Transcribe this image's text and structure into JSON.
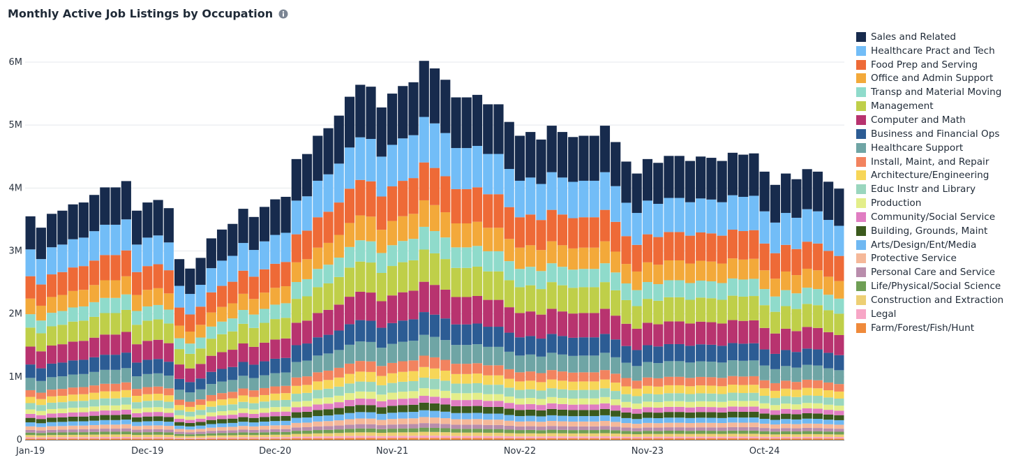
{
  "title": "Monthly Active Job Listings by Occupation",
  "icons": {
    "info": "info-icon"
  },
  "chart_data": {
    "type": "bar",
    "stacked": true,
    "title": "Monthly Active Job Listings by Occupation",
    "xlabel": "",
    "ylabel": "",
    "ylim": [
      0,
      6300000
    ],
    "yticks": [
      0,
      1000000,
      2000000,
      3000000,
      4000000,
      5000000,
      6000000
    ],
    "ytick_labels": [
      "0",
      "1M",
      "2M",
      "3M",
      "4M",
      "5M",
      "6M"
    ],
    "x_tick_labels": [
      "Jan-19",
      "Dec-19",
      "Dec-20",
      "Nov-21",
      "Nov-22",
      "Nov-23",
      "Oct-24"
    ],
    "x_tick_indices": [
      0,
      11,
      23,
      34,
      46,
      58,
      69
    ],
    "legend_position": "right",
    "grid": "horizontal",
    "categories": [
      "Jan-19",
      "Feb-19",
      "Mar-19",
      "Apr-19",
      "May-19",
      "Jun-19",
      "Jul-19",
      "Aug-19",
      "Sep-19",
      "Oct-19",
      "Nov-19",
      "Dec-19",
      "Jan-20",
      "Feb-20",
      "Mar-20",
      "Apr-20",
      "May-20",
      "Jun-20",
      "Jul-20",
      "Aug-20",
      "Sep-20",
      "Oct-20",
      "Nov-20",
      "Dec-20",
      "Jan-21",
      "Feb-21",
      "Mar-21",
      "Apr-21",
      "May-21",
      "Jun-21",
      "Jul-21",
      "Aug-21",
      "Sep-21",
      "Oct-21",
      "Nov-21",
      "Dec-21",
      "Jan-22",
      "Feb-22",
      "Mar-22",
      "Apr-22",
      "May-22",
      "Jun-22",
      "Jul-22",
      "Aug-22",
      "Sep-22",
      "Oct-22",
      "Nov-22",
      "Dec-22",
      "Jan-23",
      "Feb-23",
      "Mar-23",
      "Apr-23",
      "May-23",
      "Jun-23",
      "Jul-23",
      "Aug-23",
      "Sep-23",
      "Oct-23",
      "Nov-23",
      "Dec-23",
      "Jan-24",
      "Feb-24",
      "Mar-24",
      "Apr-24",
      "May-24",
      "Jun-24",
      "Jul-24",
      "Aug-24",
      "Sep-24",
      "Oct-24",
      "Nov-24",
      "Dec-24",
      "Jan-25",
      "Feb-25",
      "Mar-25",
      "Apr-25",
      "May-25"
    ],
    "totals": [
      3550000,
      3370000,
      3590000,
      3640000,
      3740000,
      3770000,
      3890000,
      4010000,
      4010000,
      4110000,
      3640000,
      3770000,
      3810000,
      3680000,
      2870000,
      2720000,
      2890000,
      3200000,
      3340000,
      3430000,
      3670000,
      3540000,
      3700000,
      3820000,
      3860000,
      4460000,
      4540000,
      4830000,
      4950000,
      5150000,
      5450000,
      5640000,
      5610000,
      5280000,
      5500000,
      5620000,
      5680000,
      6020000,
      5900000,
      5720000,
      5440000,
      5440000,
      5480000,
      5330000,
      5330000,
      5050000,
      4830000,
      4890000,
      4770000,
      4990000,
      4890000,
      4810000,
      4830000,
      4830000,
      4990000,
      4730000,
      4420000,
      4230000,
      4460000,
      4400000,
      4510000,
      4510000,
      4430000,
      4500000,
      4480000,
      4430000,
      4560000,
      4530000,
      4550000,
      4260000,
      4050000,
      4230000,
      4140000,
      4300000,
      4260000,
      4100000,
      3990000
    ],
    "series": [
      {
        "name": "Farm/Forest/Fish/Hunt",
        "color": "#ef8a3b",
        "share": 0.005
      },
      {
        "name": "Legal",
        "color": "#f7a6c6",
        "share": 0.006
      },
      {
        "name": "Construction and Extraction",
        "color": "#edcf74",
        "share": 0.01
      },
      {
        "name": "Life/Physical/Social Science",
        "color": "#6f9f55",
        "share": 0.011
      },
      {
        "name": "Personal Care and Service",
        "color": "#b98dac",
        "share": 0.012
      },
      {
        "name": "Protective Service",
        "color": "#f5b899",
        "share": 0.016
      },
      {
        "name": "Arts/Design/Ent/Media",
        "color": "#6fb8f2",
        "share": 0.018
      },
      {
        "name": "Building, Grounds, Maint",
        "color": "#3b5a1d",
        "share": 0.02
      },
      {
        "name": "Community/Social Service",
        "color": "#e07dc2",
        "share": 0.018
      },
      {
        "name": "Production",
        "color": "#e3ee8a",
        "share": 0.02
      },
      {
        "name": "Educ Instr and Library",
        "color": "#9ad6be",
        "share": 0.028
      },
      {
        "name": "Architecture/Engineering",
        "color": "#f7d658",
        "share": 0.028
      },
      {
        "name": "Install, Maint, and Repair",
        "color": "#f2835f",
        "share": 0.03
      },
      {
        "name": "Healthcare Support",
        "color": "#6fa5a5",
        "share": 0.055
      },
      {
        "name": "Business and Financial Ops",
        "color": "#2c5c94",
        "share": 0.06
      },
      {
        "name": "Computer and Math",
        "color": "#b8336f",
        "share": 0.08
      },
      {
        "name": "Management",
        "color": "#bfcf49",
        "share": 0.085
      },
      {
        "name": "Transp and Material Moving",
        "color": "#8fdbcb",
        "share": 0.06
      },
      {
        "name": "Office and Admin Support",
        "color": "#f3a93a",
        "share": 0.07
      },
      {
        "name": "Food Prep and Serving",
        "color": "#ee6a37",
        "share": 0.1
      },
      {
        "name": "Healthcare Pract and Tech",
        "color": "#72bdf7",
        "share": 0.12
      },
      {
        "name": "Sales and Related",
        "color": "#172b4d",
        "share": 0.148
      }
    ]
  },
  "legend": [
    {
      "label": "Sales and Related",
      "color": "#172b4d"
    },
    {
      "label": "Healthcare Pract and Tech",
      "color": "#72bdf7"
    },
    {
      "label": "Food Prep and Serving",
      "color": "#ee6a37"
    },
    {
      "label": "Office and Admin Support",
      "color": "#f3a93a"
    },
    {
      "label": "Transp and Material Moving",
      "color": "#8fdbcb"
    },
    {
      "label": "Management",
      "color": "#bfcf49"
    },
    {
      "label": "Computer and Math",
      "color": "#b8336f"
    },
    {
      "label": "Business and Financial Ops",
      "color": "#2c5c94"
    },
    {
      "label": "Healthcare Support",
      "color": "#6fa5a5"
    },
    {
      "label": "Install, Maint, and Repair",
      "color": "#f2835f"
    },
    {
      "label": "Architecture/Engineering",
      "color": "#f7d658"
    },
    {
      "label": "Educ Instr and Library",
      "color": "#9ad6be"
    },
    {
      "label": "Production",
      "color": "#e3ee8a"
    },
    {
      "label": "Community/Social Service",
      "color": "#e07dc2"
    },
    {
      "label": "Building, Grounds, Maint",
      "color": "#3b5a1d"
    },
    {
      "label": "Arts/Design/Ent/Media",
      "color": "#6fb8f2"
    },
    {
      "label": "Protective Service",
      "color": "#f5b899"
    },
    {
      "label": "Personal Care and Service",
      "color": "#b98dac"
    },
    {
      "label": "Life/Physical/Social Science",
      "color": "#6f9f55"
    },
    {
      "label": "Construction and Extraction",
      "color": "#edcf74"
    },
    {
      "label": "Legal",
      "color": "#f7a6c6"
    },
    {
      "label": "Farm/Forest/Fish/Hunt",
      "color": "#ef8a3b"
    }
  ]
}
